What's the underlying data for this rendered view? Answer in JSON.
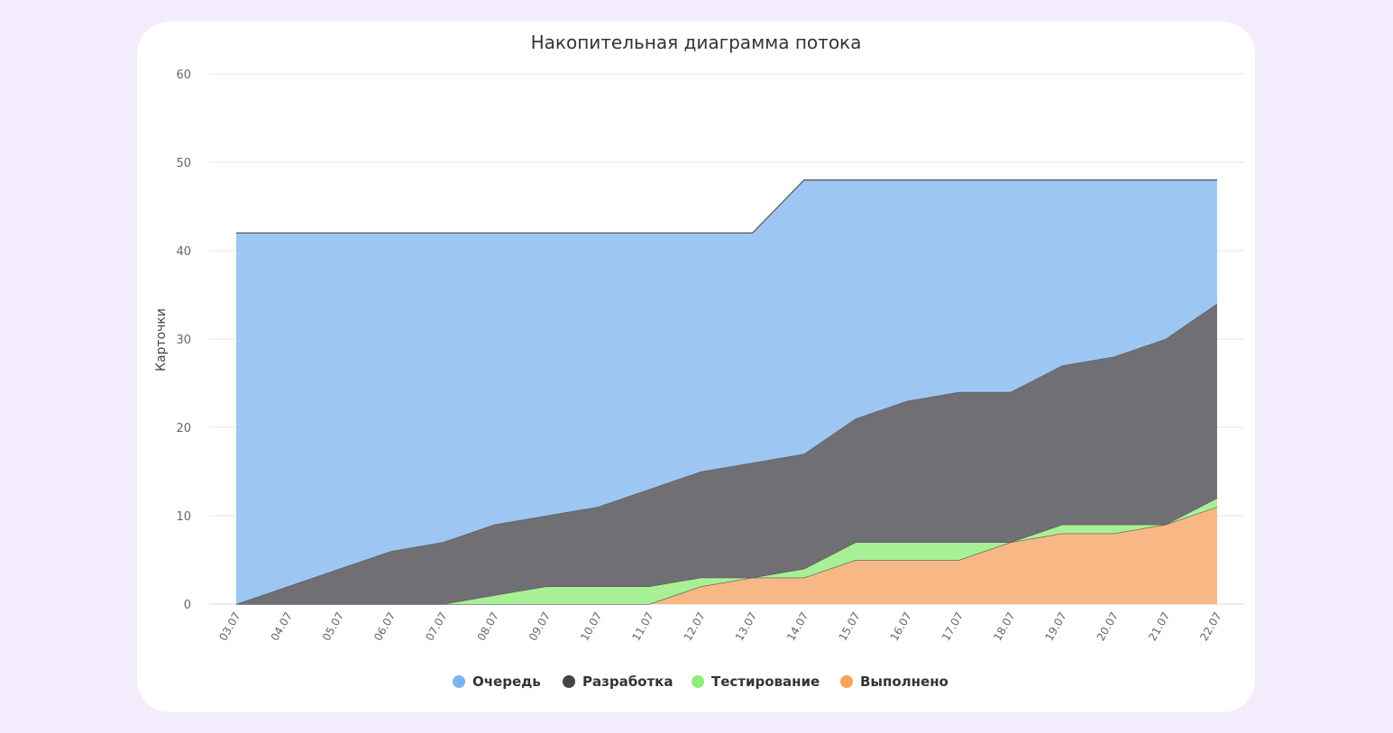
{
  "chart_data": {
    "type": "area",
    "stacked": true,
    "title": "Накопительная диаграмма потока",
    "ylabel": "Карточки",
    "xlabel": "",
    "ylim": [
      0,
      60
    ],
    "yticks": [
      0,
      10,
      20,
      30,
      40,
      50,
      60
    ],
    "grid": true,
    "legend_position": "bottom",
    "categories": [
      "03.07",
      "04.07",
      "05.07",
      "06.07",
      "07.07",
      "08.07",
      "09.07",
      "10.07",
      "11.07",
      "12.07",
      "13.07",
      "14.07",
      "15.07",
      "16.07",
      "17.07",
      "18.07",
      "19.07",
      "20.07",
      "21.07",
      "22.07"
    ],
    "series": [
      {
        "name": "Выполнено",
        "color": "#f7b885",
        "values": [
          0,
          0,
          0,
          0,
          0,
          0,
          0,
          0,
          0,
          2,
          3,
          3,
          5,
          5,
          5,
          7,
          8,
          8,
          9,
          11
        ]
      },
      {
        "name": "Тестирование",
        "color": "#a8f096",
        "values": [
          0,
          0,
          0,
          0,
          0,
          1,
          2,
          2,
          2,
          1,
          0,
          1,
          2,
          2,
          2,
          0,
          1,
          1,
          0,
          1
        ]
      },
      {
        "name": "Разработка",
        "color": "#707074",
        "values": [
          0,
          2,
          4,
          6,
          7,
          8,
          8,
          9,
          11,
          12,
          13,
          13,
          14,
          16,
          17,
          17,
          18,
          19,
          21,
          22
        ]
      },
      {
        "name": "Очередь",
        "color": "#9dc7f2",
        "values": [
          42,
          40,
          38,
          36,
          35,
          33,
          32,
          31,
          29,
          27,
          26,
          31,
          27,
          25,
          24,
          24,
          21,
          20,
          18,
          14
        ]
      }
    ],
    "legend": [
      {
        "name": "Очередь",
        "color": "#7cb5ec"
      },
      {
        "name": "Разработка",
        "color": "#434348"
      },
      {
        "name": "Тестирование",
        "color": "#90ed7d"
      },
      {
        "name": "Выполнено",
        "color": "#f7a35c"
      }
    ]
  }
}
